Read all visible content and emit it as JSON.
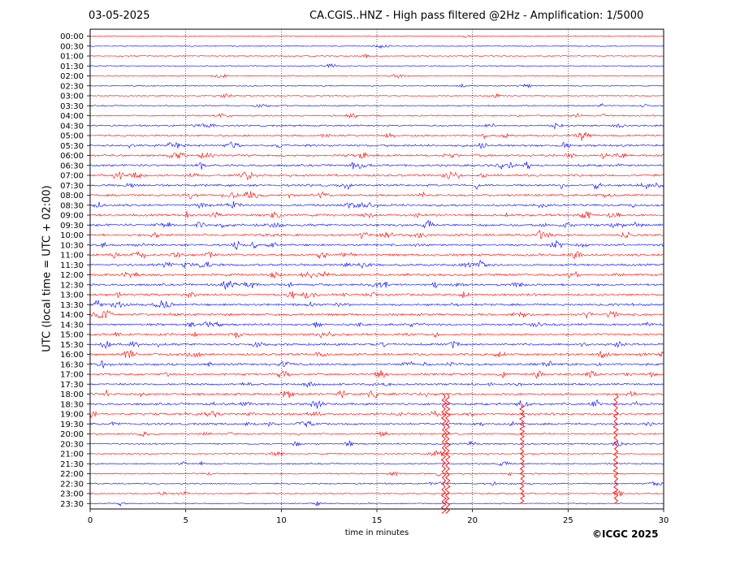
{
  "header": {
    "date": "03-05-2025",
    "title": "CA.CGIS..HNZ - High pass filtered @2Hz - Amplification: 1/5000"
  },
  "footer": {
    "copyright": "©ICGC 2025"
  },
  "chart_data": {
    "type": "line",
    "title": "CA.CGIS..HNZ - High pass filtered @2Hz - Amplification: 1/5000",
    "xlabel": "time in minutes",
    "ylabel": "UTC (local time = UTC + 02:00)",
    "xlim": [
      0,
      30
    ],
    "x_ticks": [
      0,
      5,
      10,
      15,
      20,
      25,
      30
    ],
    "rows": [
      "00:00",
      "00:30",
      "01:00",
      "01:30",
      "02:00",
      "02:30",
      "03:00",
      "03:30",
      "04:00",
      "04:30",
      "05:00",
      "05:30",
      "06:00",
      "06:30",
      "07:00",
      "07:30",
      "08:00",
      "08:30",
      "09:00",
      "09:30",
      "10:00",
      "10:30",
      "11:00",
      "11:30",
      "12:00",
      "12:30",
      "13:00",
      "13:30",
      "14:00",
      "14:30",
      "15:00",
      "15:30",
      "16:00",
      "16:30",
      "17:00",
      "17:30",
      "18:00",
      "18:30",
      "19:00",
      "19:30",
      "20:00",
      "20:30",
      "21:00",
      "21:30",
      "22:00",
      "22:30",
      "23:00",
      "23:30"
    ],
    "row_colors": [
      "#ff0000",
      "#0000ff"
    ],
    "grid": "vertical dotted lines at 5-minute intervals",
    "activity_level": [
      0.08,
      0.1,
      0.1,
      0.1,
      0.12,
      0.12,
      0.15,
      0.18,
      0.25,
      0.35,
      0.45,
      0.55,
      0.55,
      0.6,
      0.6,
      0.55,
      0.6,
      0.6,
      0.6,
      0.65,
      0.6,
      0.55,
      0.6,
      0.6,
      0.65,
      0.6,
      0.6,
      0.6,
      0.6,
      0.55,
      0.6,
      0.6,
      0.6,
      0.6,
      0.55,
      0.5,
      0.6,
      0.6,
      0.6,
      0.5,
      0.35,
      0.3,
      0.25,
      0.3,
      0.25,
      0.25,
      0.2,
      0.15
    ],
    "spikes": [
      {
        "row": "18:00",
        "minute": 18.5,
        "extent_rows": 12
      },
      {
        "row": "18:00",
        "minute": 18.7,
        "extent_rows": 12
      },
      {
        "row": "18:30",
        "minute": 22.6,
        "extent_rows": 10
      },
      {
        "row": "18:00",
        "minute": 27.5,
        "extent_rows": 11
      }
    ]
  }
}
